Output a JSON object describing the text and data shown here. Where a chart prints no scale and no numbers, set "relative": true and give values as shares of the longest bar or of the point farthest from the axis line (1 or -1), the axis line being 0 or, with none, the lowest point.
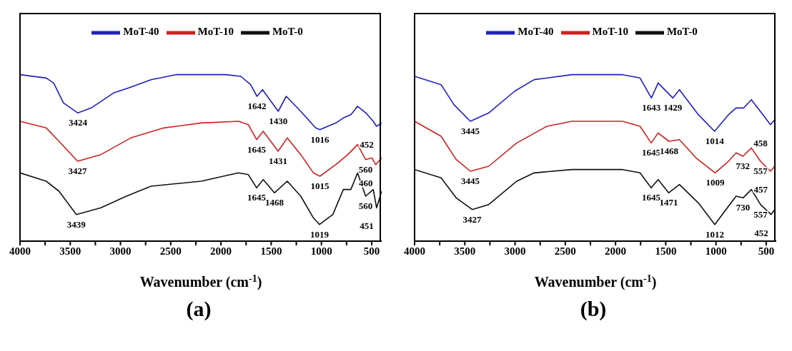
{
  "chart_data": [
    {
      "type": "line",
      "title": "(a)",
      "xlabel": "Wavenumber (cm$^{-1}$)",
      "relative": true,
      "legend": "top",
      "xlim": [
        4000,
        400
      ],
      "xticks": [
        4000,
        {
          "value": 3750,
          "label": null
        },
        3500,
        {
          "value": 3250,
          "label": null
        },
        3000,
        {
          "value": 2750,
          "label": null
        },
        2500,
        {
          "value": 2250,
          "label": null
        },
        2000,
        {
          "value": 1750,
          "label": null
        },
        1500,
        {
          "value": 1250,
          "label": null
        },
        1000,
        {
          "value": 750,
          "label": null
        },
        500
      ],
      "series": [
        {
          "name": "MoT-40",
          "color": "#1f1fbf",
          "x": [
            4000,
            3739,
            3665,
            3567,
            3424,
            3292,
            3069,
            2920,
            2696,
            2450,
            1951,
            1802,
            1705,
            1642,
            1586,
            1430,
            1350,
            1206,
            1057,
            1016,
            856,
            782,
            707,
            640,
            558,
            484,
            452,
            400
          ],
          "values": [
            1.0,
            0.98,
            0.95,
            0.83,
            0.77,
            0.8,
            0.89,
            0.92,
            0.97,
            1.0,
            1.0,
            0.99,
            0.94,
            0.87,
            0.91,
            0.78,
            0.87,
            0.78,
            0.68,
            0.67,
            0.71,
            0.74,
            0.76,
            0.81,
            0.77,
            0.72,
            0.69,
            0.71
          ]
        },
        {
          "name": "MoT-10",
          "color": "#d02020",
          "x": [
            4000,
            3739,
            3612,
            3427,
            3195,
            2897,
            2570,
            2197,
            1825,
            1728,
            1645,
            1579,
            1431,
            1340,
            1206,
            1080,
            1015,
            856,
            737,
            640,
            560,
            498,
            460,
            400
          ],
          "values": [
            0.72,
            0.68,
            0.6,
            0.48,
            0.52,
            0.62,
            0.68,
            0.71,
            0.72,
            0.7,
            0.61,
            0.66,
            0.54,
            0.62,
            0.52,
            0.41,
            0.39,
            0.46,
            0.52,
            0.58,
            0.49,
            0.5,
            0.46,
            0.5
          ]
        },
        {
          "name": "MoT-0",
          "color": "#111111",
          "x": [
            4000,
            3739,
            3612,
            3439,
            3195,
            2942,
            2696,
            2197,
            1825,
            1728,
            1645,
            1579,
            1468,
            1340,
            1206,
            1080,
            1019,
            886,
            782,
            707,
            640,
            560,
            484,
            451,
            400
          ],
          "values": [
            0.41,
            0.36,
            0.3,
            0.16,
            0.2,
            0.27,
            0.33,
            0.36,
            0.41,
            0.4,
            0.32,
            0.37,
            0.29,
            0.36,
            0.27,
            0.14,
            0.1,
            0.16,
            0.31,
            0.31,
            0.41,
            0.27,
            0.31,
            0.2,
            0.3
          ]
        }
      ],
      "annotations": [
        {
          "text": "3424",
          "x": 3424,
          "y": 0.77
        },
        {
          "text": "1642",
          "x": 1642,
          "y": 0.87
        },
        {
          "text": "1430",
          "x": 1430,
          "y": 0.78
        },
        {
          "text": "1016",
          "x": 1016,
          "y": 0.67
        },
        {
          "text": "452",
          "x": 452,
          "y": 0.69
        },
        {
          "text": "3427",
          "x": 3427,
          "y": 0.48
        },
        {
          "text": "1645",
          "x": 1645,
          "y": 0.61
        },
        {
          "text": "1431",
          "x": 1431,
          "y": 0.54
        },
        {
          "text": "1015",
          "x": 1015,
          "y": 0.39
        },
        {
          "text": "560",
          "x": 560,
          "y": 0.49
        },
        {
          "text": "460",
          "x": 460,
          "y": 0.46
        },
        {
          "text": "3439",
          "x": 3439,
          "y": 0.16
        },
        {
          "text": "1645",
          "x": 1645,
          "y": 0.32
        },
        {
          "text": "1468",
          "x": 1468,
          "y": 0.29
        },
        {
          "text": "1019",
          "x": 1019,
          "y": 0.1
        },
        {
          "text": "560",
          "x": 560,
          "y": 0.27
        },
        {
          "text": "451",
          "x": 451,
          "y": 0.2
        }
      ]
    },
    {
      "type": "line",
      "title": "(b)",
      "xlabel": "Wavenumber (cm$^{-1}$)",
      "relative": true,
      "legend": "top",
      "xlim": [
        4000,
        400
      ],
      "xticks": [
        4000,
        {
          "value": 3750,
          "label": null
        },
        3500,
        {
          "value": 3250,
          "label": null
        },
        3000,
        {
          "value": 2750,
          "label": null
        },
        2500,
        {
          "value": 2250,
          "label": null
        },
        2000,
        {
          "value": 1750,
          "label": null
        },
        1500,
        {
          "value": 1250,
          "label": null
        },
        1000,
        {
          "value": 750,
          "label": null
        },
        500
      ],
      "series": [
        {
          "name": "MoT-40",
          "color": "#1f1fbf",
          "x": [
            4000,
            3736,
            3609,
            3445,
            3262,
            3006,
            2810,
            2434,
            1929,
            1756,
            1643,
            1576,
            1429,
            1364,
            1176,
            1014,
            875,
            800,
            724,
            648,
            521,
            458,
            416
          ],
          "values": [
            0.99,
            0.94,
            0.82,
            0.72,
            0.77,
            0.9,
            0.97,
            1.0,
            1.0,
            0.98,
            0.86,
            0.95,
            0.86,
            0.91,
            0.76,
            0.66,
            0.76,
            0.8,
            0.8,
            0.85,
            0.75,
            0.7,
            0.73
          ]
        },
        {
          "name": "MoT-10",
          "color": "#d02020",
          "x": [
            4000,
            3736,
            3586,
            3445,
            3262,
            2983,
            2682,
            2434,
            1929,
            1756,
            1645,
            1576,
            1468,
            1364,
            1199,
            1009,
            875,
            800,
            732,
            648,
            557,
            457,
            416
          ],
          "values": [
            0.72,
            0.63,
            0.49,
            0.42,
            0.45,
            0.59,
            0.69,
            0.72,
            0.72,
            0.69,
            0.59,
            0.65,
            0.6,
            0.61,
            0.5,
            0.41,
            0.48,
            0.53,
            0.51,
            0.56,
            0.48,
            0.42,
            0.45
          ]
        },
        {
          "name": "MoT-0",
          "color": "#111111",
          "x": [
            4000,
            3736,
            3586,
            3427,
            3262,
            2983,
            2810,
            2434,
            1929,
            1756,
            1645,
            1576,
            1471,
            1364,
            1176,
            1012,
            875,
            800,
            730,
            648,
            557,
            452,
            416
          ],
          "values": [
            0.43,
            0.38,
            0.26,
            0.19,
            0.22,
            0.36,
            0.41,
            0.43,
            0.43,
            0.41,
            0.32,
            0.37,
            0.29,
            0.34,
            0.23,
            0.1,
            0.21,
            0.27,
            0.26,
            0.31,
            0.22,
            0.16,
            0.19
          ]
        }
      ],
      "annotations": [
        {
          "text": "3445",
          "x": 3445,
          "y": 0.72
        },
        {
          "text": "1643",
          "x": 1643,
          "y": 0.86
        },
        {
          "text": "1429",
          "x": 1429,
          "y": 0.86
        },
        {
          "text": "1014",
          "x": 1014,
          "y": 0.66
        },
        {
          "text": "458",
          "x": 458,
          "y": 0.7
        },
        {
          "text": "3445",
          "x": 3445,
          "y": 0.42
        },
        {
          "text": "1645",
          "x": 1645,
          "y": 0.59
        },
        {
          "text": "1468",
          "x": 1468,
          "y": 0.6
        },
        {
          "text": "1009",
          "x": 1009,
          "y": 0.41
        },
        {
          "text": "732",
          "x": 732,
          "y": 0.51
        },
        {
          "text": "557",
          "x": 557,
          "y": 0.48
        },
        {
          "text": "457",
          "x": 457,
          "y": 0.42
        },
        {
          "text": "3427",
          "x": 3427,
          "y": 0.19
        },
        {
          "text": "1645",
          "x": 1645,
          "y": 0.32
        },
        {
          "text": "1471",
          "x": 1471,
          "y": 0.29
        },
        {
          "text": "1012",
          "x": 1012,
          "y": 0.1
        },
        {
          "text": "730",
          "x": 730,
          "y": 0.26
        },
        {
          "text": "557",
          "x": 557,
          "y": 0.22
        },
        {
          "text": "452",
          "x": 452,
          "y": 0.16
        }
      ]
    }
  ]
}
